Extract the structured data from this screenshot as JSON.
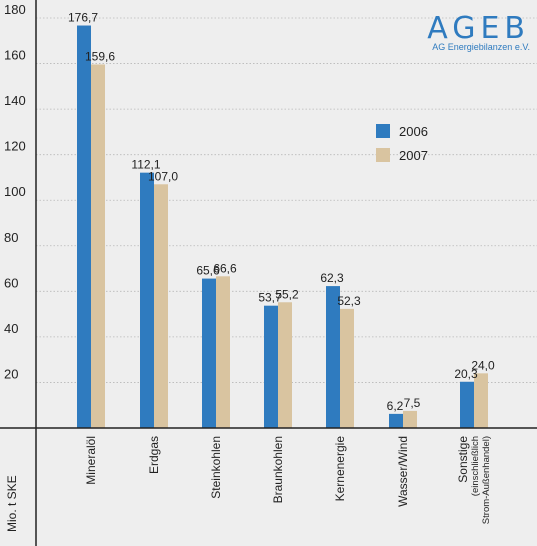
{
  "logo": {
    "name": "AGEB",
    "subtitle": "AG Energiebilanzen e.V."
  },
  "chart_data": {
    "type": "bar",
    "ylabel": "Mio. t SKE",
    "ylim": [
      0,
      180
    ],
    "yticks": [
      20,
      40,
      60,
      80,
      100,
      120,
      140,
      160,
      180
    ],
    "grid": true,
    "legend_position": "right",
    "categories": [
      [
        "Mineralöl"
      ],
      [
        "Erdgas"
      ],
      [
        "Steinkohlen"
      ],
      [
        "Braunkohlen"
      ],
      [
        "Kernenergie"
      ],
      [
        "Wasser/Wind"
      ],
      [
        "Sonstige",
        "(einschließlich",
        "Strom-Außenhandel)"
      ]
    ],
    "series": [
      {
        "name": "2006",
        "color": "#2f7bbf",
        "values": [
          176.7,
          112.1,
          65.6,
          53.7,
          62.3,
          6.2,
          20.3
        ],
        "labels": [
          "176,7",
          "112,1",
          "65,6",
          "53,7",
          "62,3",
          "6,2",
          "20,3"
        ]
      },
      {
        "name": "2007",
        "color": "#d9c4a0",
        "values": [
          159.6,
          107.0,
          66.6,
          55.2,
          52.3,
          7.5,
          24.0
        ],
        "labels": [
          "159,6",
          "107,0",
          "66,6",
          "55,2",
          "52,3",
          "7,5",
          "24,0"
        ]
      }
    ]
  }
}
